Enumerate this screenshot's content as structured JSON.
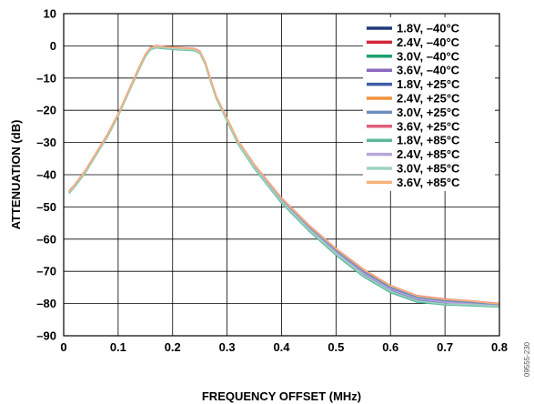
{
  "chart_data": {
    "type": "line",
    "xlabel": "FREQUENCY OFFSET (MHz)",
    "ylabel": "ATTENUATION (dB)",
    "xlim": [
      0,
      0.8
    ],
    "ylim": [
      -90,
      10
    ],
    "x_ticks": [
      0,
      0.1,
      0.2,
      0.3,
      0.4,
      0.5,
      0.6,
      0.7,
      0.8
    ],
    "x_tick_labels": [
      "0",
      "0.1",
      "0.2",
      "0.3",
      "0.4",
      "0.5",
      "0.6",
      "0.7",
      "0.8"
    ],
    "y_ticks": [
      10,
      0,
      -10,
      -20,
      -30,
      -40,
      -50,
      -60,
      -70,
      -80,
      -90
    ],
    "y_tick_labels": [
      "10",
      "0",
      "–10",
      "–20",
      "–30",
      "–40",
      "–50",
      "–60",
      "–70",
      "–80",
      "–90"
    ],
    "grid": true,
    "legend_position": "top-right",
    "figure_id": "09555-230",
    "x": [
      0.01,
      0.02,
      0.04,
      0.06,
      0.08,
      0.1,
      0.12,
      0.14,
      0.15,
      0.16,
      0.17,
      0.18,
      0.2,
      0.22,
      0.24,
      0.25,
      0.26,
      0.27,
      0.28,
      0.3,
      0.32,
      0.35,
      0.4,
      0.45,
      0.5,
      0.55,
      0.6,
      0.65,
      0.7,
      0.75,
      0.8
    ],
    "series": [
      {
        "name": "1.8V, –40°C",
        "color": "#1f3a7a",
        "y": [
          -45.5,
          -43.5,
          -39,
          -33.5,
          -28,
          -21.5,
          -14,
          -6.5,
          -3,
          -0.8,
          -0.3,
          -0.5,
          -0.8,
          -1,
          -1.2,
          -2,
          -5.5,
          -11,
          -16,
          -23,
          -30,
          -37.5,
          -48,
          -56.5,
          -64,
          -70.5,
          -75.5,
          -78.5,
          -79.5,
          -80,
          -80.8
        ]
      },
      {
        "name": "2.4V, –40°C",
        "color": "#d4253a",
        "y": [
          -45.2,
          -43.3,
          -38.8,
          -33.3,
          -27.8,
          -21.3,
          -13.8,
          -6.3,
          -2.8,
          -0.6,
          -0.1,
          -0.3,
          -0.6,
          -0.8,
          -1,
          -1.8,
          -5.3,
          -10.8,
          -15.8,
          -22.8,
          -29.8,
          -37.2,
          -47.6,
          -56,
          -63.4,
          -69.8,
          -74.9,
          -78,
          -79,
          -79.6,
          -80.4
        ]
      },
      {
        "name": "3.0V, –40°C",
        "color": "#1e9e6e",
        "y": [
          -45.7,
          -43.7,
          -39.2,
          -33.7,
          -28.2,
          -21.7,
          -14.2,
          -6.7,
          -3.2,
          -1,
          -0.5,
          -0.7,
          -1,
          -1.2,
          -1.4,
          -2.2,
          -5.7,
          -11.2,
          -16.2,
          -23.3,
          -30.4,
          -38,
          -48.6,
          -57.2,
          -64.8,
          -71.4,
          -76.4,
          -79.4,
          -80.3,
          -80.6,
          -81
        ]
      },
      {
        "name": "3.6V, –40°C",
        "color": "#8a68c0",
        "y": [
          -45.4,
          -43.4,
          -38.9,
          -33.4,
          -27.9,
          -21.4,
          -13.9,
          -6.4,
          -2.9,
          -0.7,
          -0.2,
          -0.4,
          -0.7,
          -0.9,
          -1.1,
          -1.9,
          -5.4,
          -10.9,
          -15.9,
          -22.9,
          -29.9,
          -37.4,
          -47.8,
          -56.3,
          -63.8,
          -70.2,
          -75.2,
          -78.3,
          -79.3,
          -79.8,
          -80.6
        ]
      },
      {
        "name": "1.8V, +25°C",
        "color": "#3e5da8",
        "y": [
          -45.6,
          -43.6,
          -39.1,
          -33.6,
          -28.1,
          -21.6,
          -14.1,
          -6.6,
          -3.1,
          -0.9,
          -0.4,
          -0.6,
          -0.9,
          -1.1,
          -1.3,
          -2.1,
          -5.6,
          -11.1,
          -16.1,
          -23.1,
          -30.2,
          -37.7,
          -48.3,
          -56.8,
          -64.4,
          -71,
          -76,
          -79,
          -79.9,
          -80.3,
          -80.9
        ]
      },
      {
        "name": "2.4V, +25°C",
        "color": "#f0923a",
        "y": [
          -45.1,
          -43.2,
          -38.7,
          -33.2,
          -27.7,
          -21.2,
          -13.7,
          -6.2,
          -2.7,
          -0.5,
          0,
          -0.2,
          -0.5,
          -0.7,
          -0.9,
          -1.7,
          -5.2,
          -10.7,
          -15.7,
          -22.7,
          -29.6,
          -37,
          -47.4,
          -55.8,
          -63.1,
          -69.5,
          -74.6,
          -77.8,
          -78.8,
          -79.4,
          -80.2
        ]
      },
      {
        "name": "3.0V, +25°C",
        "color": "#6d8fc0",
        "y": [
          -45.3,
          -43.4,
          -38.9,
          -33.4,
          -27.9,
          -21.4,
          -13.9,
          -6.4,
          -2.9,
          -0.7,
          -0.2,
          -0.4,
          -0.7,
          -0.9,
          -1.1,
          -1.9,
          -5.4,
          -10.9,
          -15.9,
          -22.9,
          -29.9,
          -37.3,
          -47.7,
          -56.2,
          -63.6,
          -70,
          -75,
          -78.1,
          -79.1,
          -79.7,
          -80.5
        ]
      },
      {
        "name": "3.6V, +25°C",
        "color": "#e0607a",
        "y": [
          -45,
          -43.1,
          -38.6,
          -33.1,
          -27.6,
          -21.1,
          -13.6,
          -6.1,
          -2.6,
          -0.4,
          0.1,
          -0.1,
          -0.4,
          -0.6,
          -0.8,
          -1.6,
          -5.1,
          -10.6,
          -15.6,
          -22.5,
          -29.4,
          -36.8,
          -47.2,
          -55.6,
          -62.9,
          -69.3,
          -74.4,
          -77.6,
          -78.6,
          -79.2,
          -80
        ]
      },
      {
        "name": "1.8V, +85°C",
        "color": "#5cb89a",
        "y": [
          -45.8,
          -43.8,
          -39.3,
          -33.8,
          -28.3,
          -21.8,
          -14.3,
          -6.8,
          -3.3,
          -1.1,
          -0.6,
          -0.8,
          -1.1,
          -1.3,
          -1.5,
          -2.3,
          -5.8,
          -11.3,
          -16.3,
          -23.4,
          -30.5,
          -38.1,
          -48.8,
          -57.4,
          -65,
          -71.6,
          -76.6,
          -79.6,
          -80.4,
          -80.7,
          -81.1
        ]
      },
      {
        "name": "2.4V, +85°C",
        "color": "#b7a6d8",
        "y": [
          -45.5,
          -43.5,
          -39,
          -33.5,
          -28,
          -21.5,
          -14,
          -6.5,
          -3,
          -0.8,
          -0.3,
          -0.5,
          -0.8,
          -1,
          -1.2,
          -2,
          -5.5,
          -11,
          -16,
          -23,
          -30.1,
          -37.6,
          -48.1,
          -56.6,
          -64.1,
          -70.6,
          -75.6,
          -78.6,
          -79.6,
          -80.1,
          -80.7
        ]
      },
      {
        "name": "3.0V, +85°C",
        "color": "#9fd3c4",
        "y": [
          -45.6,
          -43.6,
          -39.1,
          -33.6,
          -28.1,
          -21.6,
          -14.1,
          -6.6,
          -3.1,
          -0.9,
          -0.4,
          -0.6,
          -0.9,
          -1.1,
          -1.3,
          -2.1,
          -5.6,
          -11.1,
          -16.1,
          -23.2,
          -30.3,
          -37.8,
          -48.4,
          -57,
          -64.6,
          -71.2,
          -76.2,
          -79.2,
          -80.1,
          -80.4,
          -80.9
        ]
      },
      {
        "name": "3.6V, +85°C",
        "color": "#f5b27a",
        "y": [
          -45.2,
          -43.2,
          -38.7,
          -33.2,
          -27.7,
          -21.2,
          -13.7,
          -6.2,
          -2.7,
          -0.5,
          0,
          -0.2,
          -0.5,
          -0.7,
          -0.9,
          -1.7,
          -5.2,
          -10.7,
          -15.7,
          -22.6,
          -29.5,
          -36.9,
          -47.3,
          -55.7,
          -63,
          -69.4,
          -74.5,
          -77.7,
          -78.7,
          -79.3,
          -80.1
        ]
      }
    ]
  }
}
